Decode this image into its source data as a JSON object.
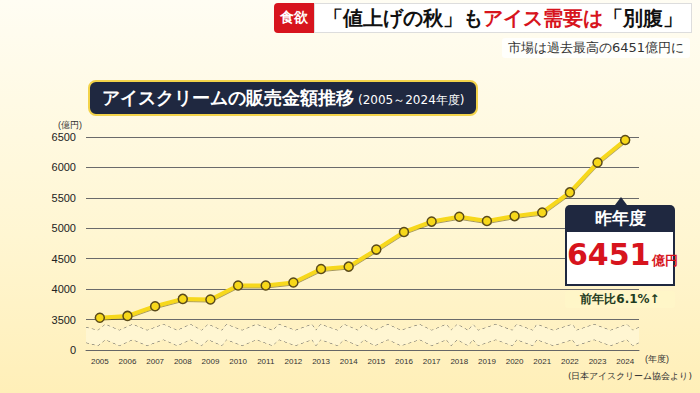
{
  "chart_data": {
    "type": "line",
    "title": "アイスクリームの販売金額推移",
    "subtitle": "(2005～2024年度)",
    "x_label": "(年度)",
    "y_label": "(億円)",
    "categories": [
      "2005",
      "2006",
      "2007",
      "2008",
      "2009",
      "2010",
      "2011",
      "2012",
      "2013",
      "2014",
      "2015",
      "2016",
      "2017",
      "2018",
      "2019",
      "2020",
      "2021",
      "2022",
      "2023",
      "2024"
    ],
    "values": [
      3530,
      3560,
      3720,
      3840,
      3830,
      4060,
      4060,
      4110,
      4330,
      4370,
      4650,
      4940,
      5110,
      5190,
      5120,
      5200,
      5260,
      5590,
      6080,
      6451
    ],
    "color": "#f7d81a",
    "marker": "circle",
    "line_style": "solid",
    "ylim": [
      0,
      6500
    ],
    "yticks": [
      0,
      3500,
      4000,
      4500,
      5000,
      5500,
      6000,
      6500
    ],
    "grid": true,
    "annotations": {
      "badge": "食欲",
      "headline": [
        {
          "text": "「値上げの秋」も"
        },
        {
          "text": "アイス需要は",
          "color": "#d7141d"
        },
        {
          "text": "「別腹」"
        }
      ],
      "strap": "市場は過去最高の6451億円に",
      "callout": {
        "label": "昨年度",
        "value": 6451,
        "unit": "億円",
        "change": "前年比6.1%↑"
      },
      "source": "(日本アイスクリーム協会より)"
    }
  }
}
